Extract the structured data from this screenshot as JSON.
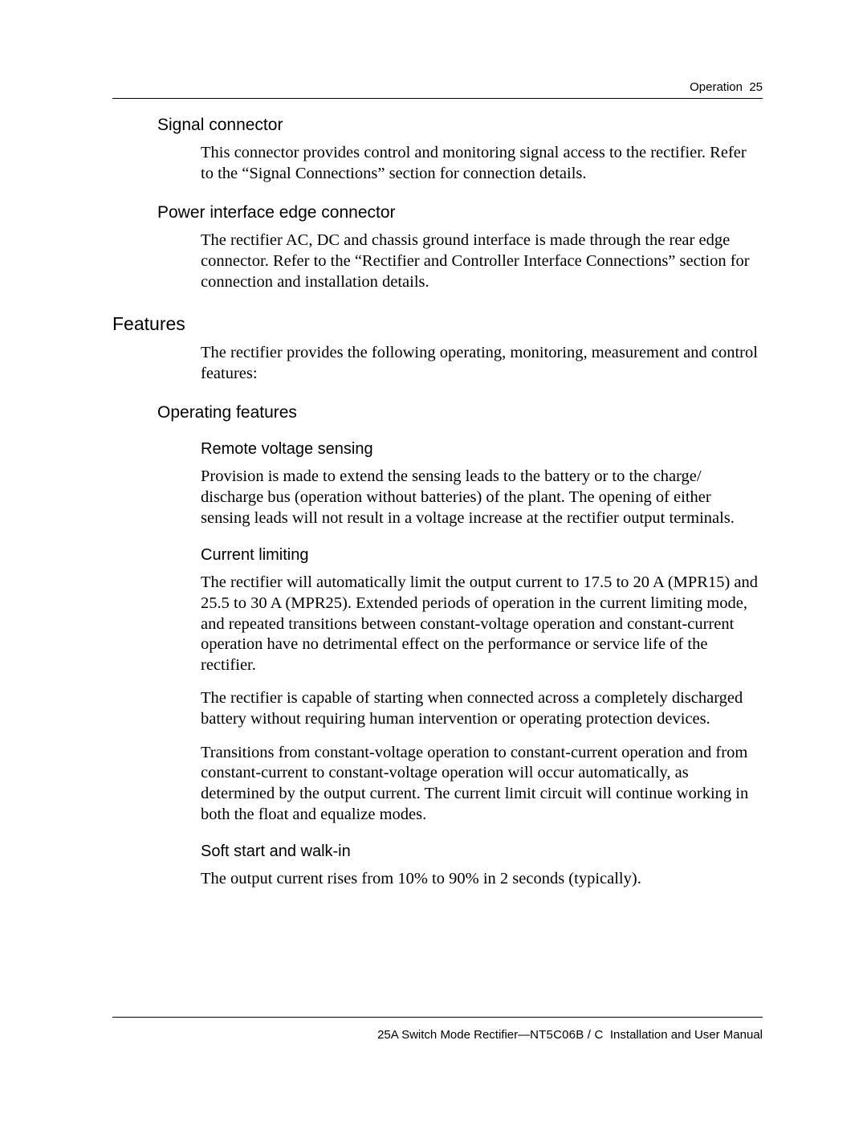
{
  "header": {
    "section": "Operation",
    "page_no": "25"
  },
  "sections": {
    "signal_connector": {
      "heading": "Signal connector",
      "p1": "This connector provides control and monitoring signal access to the rectifier. Refer to the “Signal Connections” section for connection details."
    },
    "power_iface": {
      "heading": "Power interface edge connector",
      "p1": "The rectifier AC, DC and chassis ground interface is made through the rear edge connector. Refer to the “Rectifier and Controller Interface Connections” section for connection and installation details."
    },
    "features": {
      "heading": "Features",
      "p1": "The rectifier provides the following operating, monitoring, measurement and control features:"
    },
    "operating_features": {
      "heading": "Operating features",
      "remote_voltage": {
        "heading": "Remote voltage sensing",
        "p1": "Provision is made to extend the sensing leads to the battery or to the charge/ discharge bus (operation without batteries) of the plant. The opening of either sensing leads will not result in a voltage increase at the rectifier output terminals."
      },
      "current_limiting": {
        "heading": "Current limiting",
        "p1": "The rectifier will automatically limit the output current to 17.5 to 20 A (MPR15) and 25.5 to 30 A (MPR25). Extended periods of operation in the current limiting mode, and repeated transitions between constant-voltage operation and constant-current operation have no detrimental effect on the performance or service life of the rectifier.",
        "p2": "The rectifier is capable of starting when connected across a completely discharged battery without requiring human intervention or operating protection devices.",
        "p3": "Transitions from constant-voltage operation to constant-current operation and from constant-current to constant-voltage operation will occur automatically, as determined by the output current. The current limit circuit will continue working in both the float and equalize modes."
      },
      "soft_start": {
        "heading": "Soft start and walk-in",
        "p1": "The output current rises from 10% to 90% in 2 seconds (typically)."
      }
    }
  },
  "footer": {
    "product": "25A Switch Mode Rectifier",
    "sep": "—",
    "part_no": "NT5C06B / C",
    "doc_type": "Installation and User Manual"
  }
}
